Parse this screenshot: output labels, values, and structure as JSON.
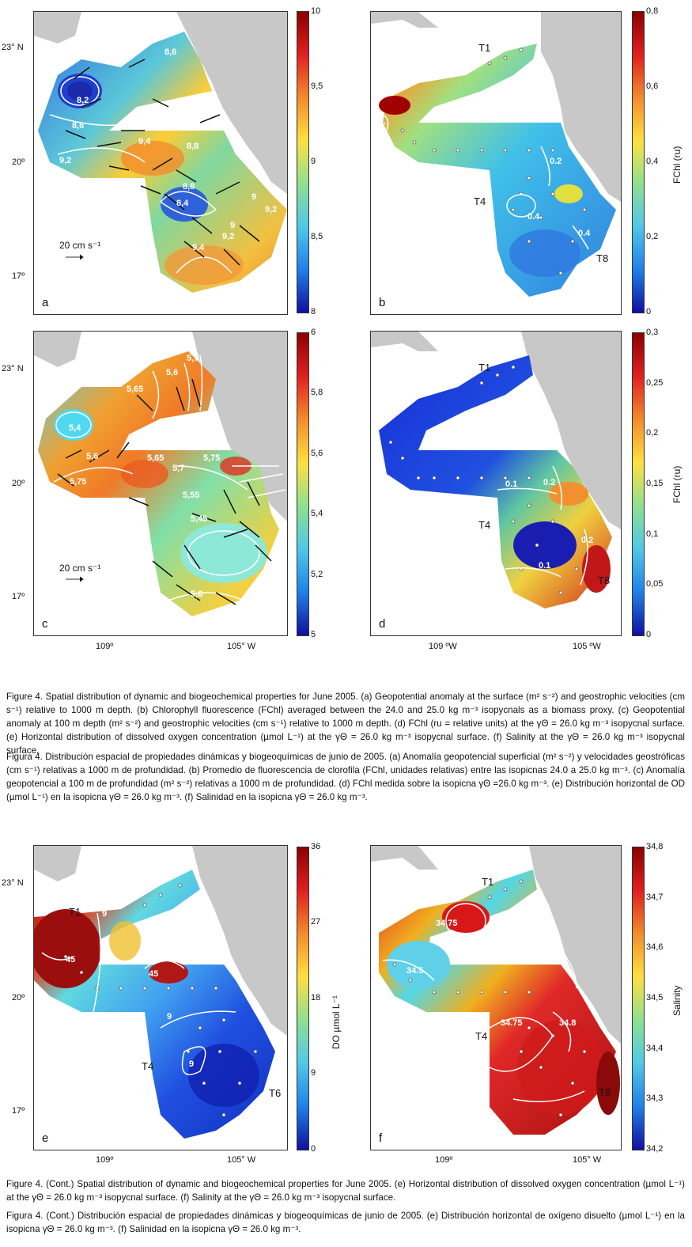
{
  "panels": {
    "a": {
      "letter": "a",
      "contours": [
        "8,6",
        "8,2",
        "8,6",
        "9,4",
        "9,2",
        "8,8",
        "8,8",
        "8,4",
        "9",
        "9,2",
        "9",
        "9,2",
        "9,4"
      ],
      "scale": "20 cm s⁻¹"
    },
    "b": {
      "letter": "b",
      "transects": [
        "T1",
        "T4",
        "T8"
      ],
      "contours": [
        "0.",
        "0.2",
        "0.4",
        "0.4"
      ]
    },
    "c": {
      "letter": "c",
      "contours": [
        "5,7",
        "5,6",
        "5,65",
        "5,4",
        "5,6",
        "5,75",
        "5,65",
        "5,7",
        "5,75",
        "5,55",
        "5,45",
        "5,6"
      ],
      "scale": "20 cm s⁻¹"
    },
    "d": {
      "letter": "d",
      "transects": [
        "T1",
        "T4",
        "T8"
      ],
      "contours": [
        "0.1",
        "0.2",
        "0.2",
        "0.1"
      ]
    },
    "e": {
      "letter": "e",
      "transects": [
        "T1",
        "T4",
        "T6"
      ],
      "contours": [
        "9",
        "45",
        "45",
        "9",
        "9"
      ]
    },
    "f": {
      "letter": "f",
      "transects": [
        "T1",
        "T4",
        "T8"
      ],
      "contours": [
        "34.75",
        "34.5",
        "34.75",
        "34.8"
      ]
    }
  },
  "axes": {
    "lat_ticks": [
      "23° N",
      "20º",
      "17º"
    ],
    "lon_ticks_left": [
      "109º",
      "105° W"
    ],
    "lon_ticks_right_d": [
      "109 ºW",
      "105 ºW"
    ],
    "lon_ticks_right_f": [
      "109º",
      "105° W"
    ]
  },
  "colorbars": {
    "a": {
      "ticks": [
        "10",
        "9,5",
        "9",
        "8,5",
        "8"
      ],
      "title": ""
    },
    "b": {
      "ticks": [
        "0,8",
        "0,6",
        "0,4",
        "0,2",
        "0"
      ],
      "title": "FChl (ru)"
    },
    "c": {
      "ticks": [
        "6",
        "5,8",
        "5,6",
        "5,4",
        "5,2",
        "5"
      ],
      "title": ""
    },
    "d": {
      "ticks": [
        "0,3",
        "0,25",
        "0,2",
        "0,15",
        "0,1",
        "0,05",
        "0"
      ],
      "title": "FChl (ru)"
    },
    "e": {
      "ticks": [
        "36",
        "27",
        "18",
        "9",
        "0"
      ],
      "title": "DO µmol L⁻¹"
    },
    "f": {
      "ticks": [
        "34,8",
        "34,7",
        "34,6",
        "34,5",
        "34,4",
        "34,3",
        "34,2"
      ],
      "title": "Salinity"
    }
  },
  "captions": {
    "fig4_en": "Figure 4. Spatial distribution of dynamic and biogeochemical properties for June 2005. (a) Geopotential anomaly at the surface (m² s⁻²) and geostrophic velocities (cm s⁻¹) relative to 1000 m depth. (b) Chlorophyll fluorescence (FChl) averaged between the 24.0 and 25.0 kg m⁻³ isopycnals as a biomass proxy. (c) Geopotential anomaly at 100 m depth (m² s⁻²) and geostrophic velocities (cm s⁻¹) relative to 1000 m depth. (d) FChl (ru = relative units) at the γΘ = 26.0 kg m⁻³ isopycnal surface. (e) Horizontal distribution of dissolved oxygen concentration (µmol L⁻¹) at the γΘ = 26.0 kg m⁻³ isopycnal surface. (f) Salinity at the γΘ = 26.0 kg m⁻³ isopycnal surface.",
    "fig4_es": "Figura 4. Distribución espacial de propiedades dinámicas y biogeoquímicas de junio de 2005. (a) Anomalía geopotencial superficial (m² s⁻²) y velocidades geostróficas (cm s⁻¹) relativas a 1000 m de profundidad. (b) Promedio de fluorescencia de clorofila (FChl, unidades relativas) entre las isopicnas 24.0 a 25.0 kg m⁻³. (c) Anomalía geopotencial a 100 m de profundidad (m² s⁻²) relativas a 1000 m de profundidad. (d) FChl medida sobre la isopicna γΘ =26.0 kg m⁻³. (e) Distribución horizontal de OD (µmol L⁻¹) en la isopicna γΘ = 26.0 kg m⁻³. (f) Salinidad en la isopicna γΘ = 26.0 kg m⁻³.",
    "fig4cont_en": "Figure 4. (Cont.) Spatial distribution of dynamic and biogeochemical properties for June 2005. (e) Horizontal distribution of dissolved oxygen concentration (µmol L⁻¹) at the γΘ = 26.0 kg m⁻³ isopycnal surface. (f) Salinity at the γΘ = 26.0 kg m⁻³ isopycnal surface.",
    "fig4cont_es": "Figura 4. (Cont.) Distribución espacial de propiedades dinámicas y biogeoquímicas de junio de 2005. (e) Distribución horizontal de oxígeno disuelto (µmol L⁻¹) en la isopicna γΘ = 26.0 kg m⁻³. (f) Salinidad en la isopicna γΘ = 26.0 kg m⁻³."
  }
}
